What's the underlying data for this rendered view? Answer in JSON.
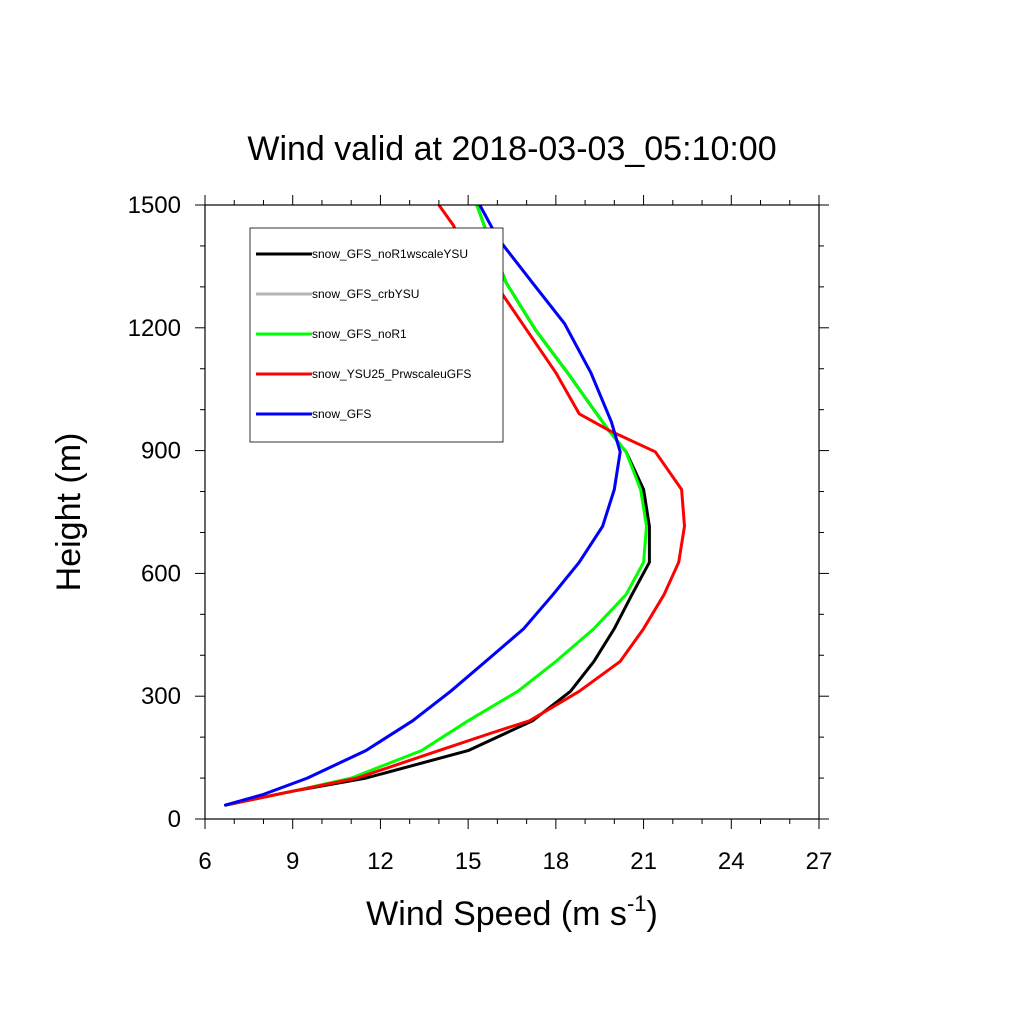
{
  "chart_data": {
    "type": "line",
    "title": "Wind valid at 2018-03-03_05:10:00",
    "xlabel": "Wind Speed (m s",
    "xlabel_superscript": "-1",
    "xlabel_suffix": ")",
    "ylabel": "Height (m)",
    "xlim": [
      6,
      27
    ],
    "ylim": [
      0,
      1500
    ],
    "xticks": [
      6,
      9,
      12,
      15,
      18,
      21,
      24,
      27
    ],
    "yticks": [
      0,
      300,
      600,
      900,
      1200,
      1500
    ],
    "x_minor_step": 1,
    "y_minor_step": 100,
    "legend_position": "top-left",
    "series": [
      {
        "name": "snow_GFS_noR1wscaleYSU",
        "color": "#000000",
        "points": [
          [
            6.7,
            34
          ],
          [
            9.0,
            68
          ],
          [
            11.5,
            100
          ],
          [
            15.0,
            167
          ],
          [
            17.2,
            240
          ],
          [
            18.5,
            312
          ],
          [
            19.3,
            385
          ],
          [
            20.0,
            465
          ],
          [
            20.6,
            548
          ],
          [
            21.2,
            627
          ],
          [
            21.2,
            715
          ],
          [
            21.0,
            805
          ],
          [
            20.4,
            897
          ],
          [
            19.8,
            950
          ],
          [
            19.2,
            1010
          ],
          [
            18.4,
            1090
          ],
          [
            17.3,
            1195
          ],
          [
            16.3,
            1310
          ],
          [
            15.8,
            1400
          ],
          [
            15.3,
            1500
          ]
        ]
      },
      {
        "name": "snow_GFS_crbYSU",
        "color": "#b4b4b4",
        "points": [
          [
            6.7,
            34
          ],
          [
            8.0,
            60
          ],
          [
            9.5,
            100
          ],
          [
            11.5,
            167
          ],
          [
            13.1,
            240
          ],
          [
            14.4,
            312
          ],
          [
            15.6,
            385
          ],
          [
            16.9,
            465
          ],
          [
            17.9,
            548
          ],
          [
            18.8,
            627
          ],
          [
            19.6,
            715
          ],
          [
            20.0,
            805
          ],
          [
            20.2,
            897
          ],
          [
            19.9,
            970
          ],
          [
            19.2,
            1090
          ],
          [
            18.3,
            1210
          ],
          [
            17.2,
            1310
          ],
          [
            16.0,
            1420
          ],
          [
            15.4,
            1500
          ]
        ]
      },
      {
        "name": "snow_GFS_noR1",
        "color": "#00ff00",
        "points": [
          [
            6.7,
            34
          ],
          [
            9.0,
            68
          ],
          [
            11.0,
            100
          ],
          [
            13.4,
            167
          ],
          [
            15.0,
            240
          ],
          [
            16.7,
            312
          ],
          [
            18.0,
            385
          ],
          [
            19.3,
            465
          ],
          [
            20.4,
            548
          ],
          [
            21.0,
            627
          ],
          [
            21.1,
            715
          ],
          [
            20.9,
            805
          ],
          [
            20.4,
            897
          ],
          [
            19.8,
            950
          ],
          [
            19.2,
            1010
          ],
          [
            18.4,
            1090
          ],
          [
            17.3,
            1195
          ],
          [
            16.3,
            1310
          ],
          [
            15.8,
            1400
          ],
          [
            15.3,
            1500
          ]
        ]
      },
      {
        "name": "snow_YSU25_PrwscaleuGFS",
        "color": "#ff0000",
        "points": [
          [
            6.7,
            34
          ],
          [
            9.0,
            68
          ],
          [
            11.2,
            100
          ],
          [
            14.0,
            167
          ],
          [
            15.8,
            210
          ],
          [
            17.1,
            240
          ],
          [
            18.8,
            312
          ],
          [
            20.2,
            385
          ],
          [
            21.0,
            465
          ],
          [
            21.7,
            548
          ],
          [
            22.2,
            627
          ],
          [
            22.4,
            715
          ],
          [
            22.3,
            805
          ],
          [
            21.4,
            897
          ],
          [
            19.8,
            950
          ],
          [
            18.8,
            990
          ],
          [
            18.0,
            1090
          ],
          [
            17.0,
            1195
          ],
          [
            16.0,
            1300
          ],
          [
            14.8,
            1400
          ],
          [
            14.5,
            1450
          ],
          [
            14.0,
            1500
          ]
        ]
      },
      {
        "name": "snow_GFS",
        "color": "#0000ff",
        "points": [
          [
            6.7,
            34
          ],
          [
            8.0,
            60
          ],
          [
            9.5,
            100
          ],
          [
            11.5,
            167
          ],
          [
            13.1,
            240
          ],
          [
            14.4,
            312
          ],
          [
            15.6,
            385
          ],
          [
            16.9,
            465
          ],
          [
            17.9,
            548
          ],
          [
            18.8,
            627
          ],
          [
            19.6,
            715
          ],
          [
            20.0,
            805
          ],
          [
            20.2,
            897
          ],
          [
            19.9,
            970
          ],
          [
            19.2,
            1090
          ],
          [
            18.3,
            1210
          ],
          [
            17.2,
            1310
          ],
          [
            16.0,
            1420
          ],
          [
            15.4,
            1500
          ]
        ]
      }
    ]
  }
}
